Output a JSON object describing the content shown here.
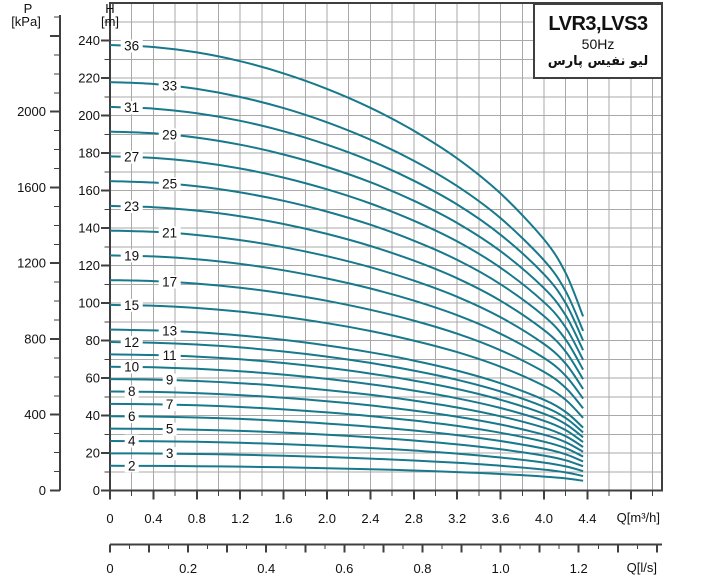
{
  "title_box": {
    "model": "LVR3,LVS3",
    "frequency": "50Hz",
    "brand": "لیو نفیس پارس"
  },
  "axes": {
    "pressure": {
      "name": "P",
      "unit": "[kPa]",
      "labeled_ticks": [
        0,
        400,
        800,
        1200,
        1600,
        2000
      ],
      "minor_step": 100,
      "max": 2500
    },
    "head": {
      "name": "H",
      "unit": "[m]",
      "labeled_ticks": [
        0,
        20,
        40,
        60,
        80,
        100,
        120,
        140,
        160,
        180,
        200,
        220,
        240
      ],
      "minor_step": 10,
      "max": 260
    },
    "flow_m3h": {
      "label": "Q[m³/h]",
      "labeled_ticks": [
        0,
        0.4,
        0.8,
        1.2,
        1.6,
        2.0,
        2.4,
        2.8,
        3.2,
        3.6,
        4.0,
        4.4
      ],
      "minor_step": 0.2,
      "max": 5.0
    },
    "flow_ls": {
      "label": "Q[l/s]",
      "labeled_ticks": [
        0,
        0.2,
        0.4,
        0.6,
        0.8,
        1.0,
        1.2
      ],
      "minor_step": 0.05,
      "max": 1.4
    }
  },
  "colors": {
    "curve": "#17798b",
    "grid": "#a9a9a9",
    "axis": "#3f3f3f",
    "text": "#111111"
  },
  "chart_data": {
    "type": "line",
    "title": "LVR3,LVS3 50Hz multistage pump performance curves",
    "xlabel": "Q[m³/h]",
    "xlabel_secondary": "Q[l/s]",
    "ylabel": "H [m]",
    "ylabel_secondary": "P [kPa]",
    "x_range_m3h": [
      0,
      5.09
    ],
    "y_range_m": [
      0,
      260
    ],
    "grid": {
      "x_step_m3h": 0.2,
      "y_step_m": 10,
      "on": true
    },
    "flow_conversion": "1 l/s = 3.6 m³/h",
    "q_samples_m3h": [
      0,
      0.4,
      0.8,
      1.2,
      1.6,
      2.0,
      2.4,
      2.8,
      3.2,
      3.6,
      4.0,
      4.2,
      4.36
    ],
    "unit_head_per_stage_m": [
      6.6,
      6.57,
      6.49,
      6.36,
      6.18,
      5.95,
      5.67,
      5.33,
      4.92,
      4.4,
      3.72,
      3.22,
      2.58
    ],
    "series_rule": "head_m(stage, q) = stage × unit_head_per_stage_m(q)",
    "curves": [
      {
        "stage": 2,
        "label_side": "left"
      },
      {
        "stage": 3,
        "label_side": "right"
      },
      {
        "stage": 4,
        "label_side": "left"
      },
      {
        "stage": 5,
        "label_side": "right"
      },
      {
        "stage": 6,
        "label_side": "left"
      },
      {
        "stage": 7,
        "label_side": "right"
      },
      {
        "stage": 8,
        "label_side": "left"
      },
      {
        "stage": 9,
        "label_side": "right"
      },
      {
        "stage": 10,
        "label_side": "left"
      },
      {
        "stage": 11,
        "label_side": "right"
      },
      {
        "stage": 12,
        "label_side": "left"
      },
      {
        "stage": 13,
        "label_side": "right"
      },
      {
        "stage": 15,
        "label_side": "left"
      },
      {
        "stage": 17,
        "label_side": "right"
      },
      {
        "stage": 19,
        "label_side": "left"
      },
      {
        "stage": 21,
        "label_side": "right"
      },
      {
        "stage": 23,
        "label_side": "left"
      },
      {
        "stage": 25,
        "label_side": "right"
      },
      {
        "stage": 27,
        "label_side": "left"
      },
      {
        "stage": 29,
        "label_side": "right"
      },
      {
        "stage": 31,
        "label_side": "left"
      },
      {
        "stage": 33,
        "label_side": "right"
      },
      {
        "stage": 36,
        "label_side": "left"
      }
    ]
  }
}
